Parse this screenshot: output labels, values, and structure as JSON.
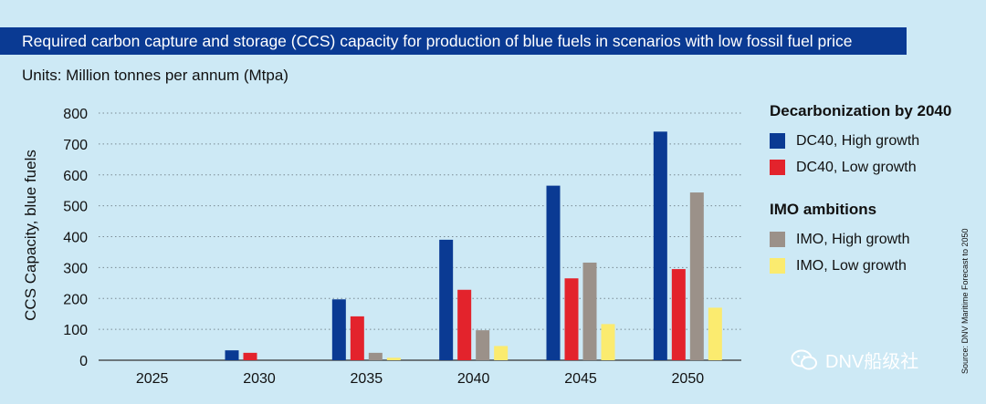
{
  "header": {
    "title": "Required carbon capture and storage (CCS) capacity for production of blue fuels in scenarios with low fossil fuel price",
    "units": "Units: Million tonnes per annum (Mtpa)"
  },
  "legend": {
    "group1_title": "Decarbonization by 2040",
    "group2_title": "IMO ambitions"
  },
  "source": "Source: DNV Maritime Forecast to 2050",
  "watermark": "DNV船级社",
  "colors": {
    "background": "#cde9f5",
    "title_bar": "#0a3a93",
    "dc40_high": "#0a3a93",
    "dc40_low": "#e3232c",
    "imo_high": "#9b9189",
    "imo_low": "#fbeb6f"
  },
  "chart_data": {
    "type": "bar",
    "categories": [
      "2025",
      "2030",
      "2035",
      "2040",
      "2045",
      "2050"
    ],
    "ylabel": "CCS Capacity, blue fuels",
    "ylim": [
      0,
      800
    ],
    "yticks": [
      0,
      100,
      200,
      300,
      400,
      500,
      600,
      700,
      800
    ],
    "grid": "horizontal dotted",
    "legend_placement": "right",
    "series": [
      {
        "name": "DC40, High growth",
        "color": "#0a3a93",
        "values": [
          0,
          32,
          197,
          390,
          565,
          740
        ]
      },
      {
        "name": "DC40, Low growth",
        "color": "#e3232c",
        "values": [
          0,
          24,
          142,
          228,
          265,
          295
        ]
      },
      {
        "name": "IMO, High growth",
        "color": "#9b9189",
        "values": [
          0,
          0,
          24,
          97,
          316,
          543
        ]
      },
      {
        "name": "IMO, Low growth",
        "color": "#fbeb6f",
        "values": [
          0,
          0,
          8,
          46,
          117,
          170
        ]
      }
    ]
  }
}
